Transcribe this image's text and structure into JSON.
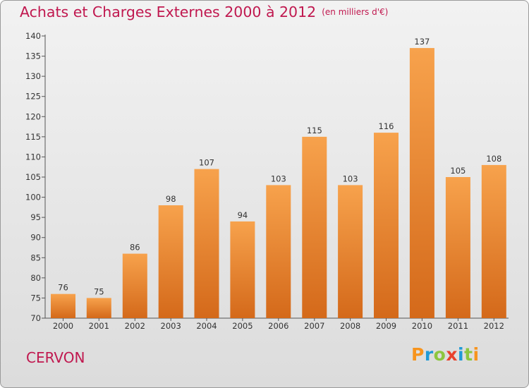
{
  "title": "Achats et Charges Externes 2000 à 2012",
  "subtitle": "(en milliers d'€)",
  "place": "CERVON",
  "logo": {
    "letters": [
      "P",
      "r",
      "o",
      "x",
      "i",
      "t",
      "i"
    ],
    "colors": [
      "#f7941d",
      "#1f9ad6",
      "#8cc63f",
      "#e8412c",
      "#1f9ad6",
      "#8cc63f",
      "#f7941d"
    ]
  },
  "chart_data": {
    "type": "bar",
    "title": "Achats et Charges Externes 2000 à 2012",
    "subtitle": "(en milliers d'€)",
    "xlabel": "",
    "ylabel": "",
    "categories": [
      "2000",
      "2001",
      "2002",
      "2003",
      "2004",
      "2005",
      "2006",
      "2007",
      "2008",
      "2009",
      "2010",
      "2011",
      "2012"
    ],
    "values": [
      76,
      75,
      86,
      98,
      107,
      94,
      103,
      115,
      103,
      116,
      137,
      105,
      108
    ],
    "ylim": [
      70,
      140
    ],
    "yticks": [
      70,
      75,
      80,
      85,
      90,
      95,
      100,
      105,
      110,
      115,
      120,
      125,
      130,
      135,
      140
    ],
    "bar_color": "#f0882e",
    "grid": false,
    "legend": "none"
  }
}
